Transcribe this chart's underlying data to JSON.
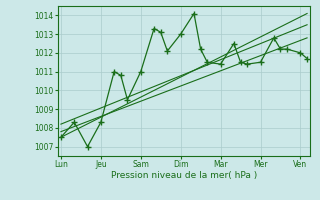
{
  "title": "",
  "xlabel": "Pression niveau de la mer( hPa )",
  "bg_color": "#cce8e8",
  "grid_color": "#aacccc",
  "line_color": "#1a6e1a",
  "text_color": "#1a6e1a",
  "ylim": [
    1006.5,
    1014.5
  ],
  "yticks": [
    1007,
    1008,
    1009,
    1010,
    1011,
    1012,
    1013,
    1014
  ],
  "x_day_labels": [
    "Lun",
    "Jeu",
    "Sam",
    "Dim",
    "Mar",
    "Mer",
    "Ven"
  ],
  "x_day_positions": [
    0,
    24,
    48,
    72,
    96,
    120,
    144
  ],
  "xlim": [
    -2,
    150
  ],
  "main_x": [
    0,
    8,
    16,
    24,
    32,
    36,
    40,
    48,
    56,
    60,
    64,
    72,
    80,
    84,
    88,
    96,
    104,
    108,
    112,
    120,
    128,
    132,
    136,
    144,
    148
  ],
  "main_y": [
    1007.5,
    1008.3,
    1007.0,
    1008.3,
    1011.0,
    1010.8,
    1009.5,
    1011.0,
    1013.3,
    1013.1,
    1012.1,
    1013.0,
    1014.1,
    1012.2,
    1011.5,
    1011.4,
    1012.5,
    1011.5,
    1011.4,
    1011.5,
    1012.8,
    1012.2,
    1012.2,
    1012.0,
    1011.7
  ],
  "trend1_x": [
    0,
    148
  ],
  "trend1_y": [
    1007.5,
    1014.1
  ],
  "trend2_x": [
    0,
    148
  ],
  "trend2_y": [
    1008.2,
    1013.5
  ],
  "trend3_x": [
    0,
    148
  ],
  "trend3_y": [
    1007.8,
    1012.8
  ]
}
